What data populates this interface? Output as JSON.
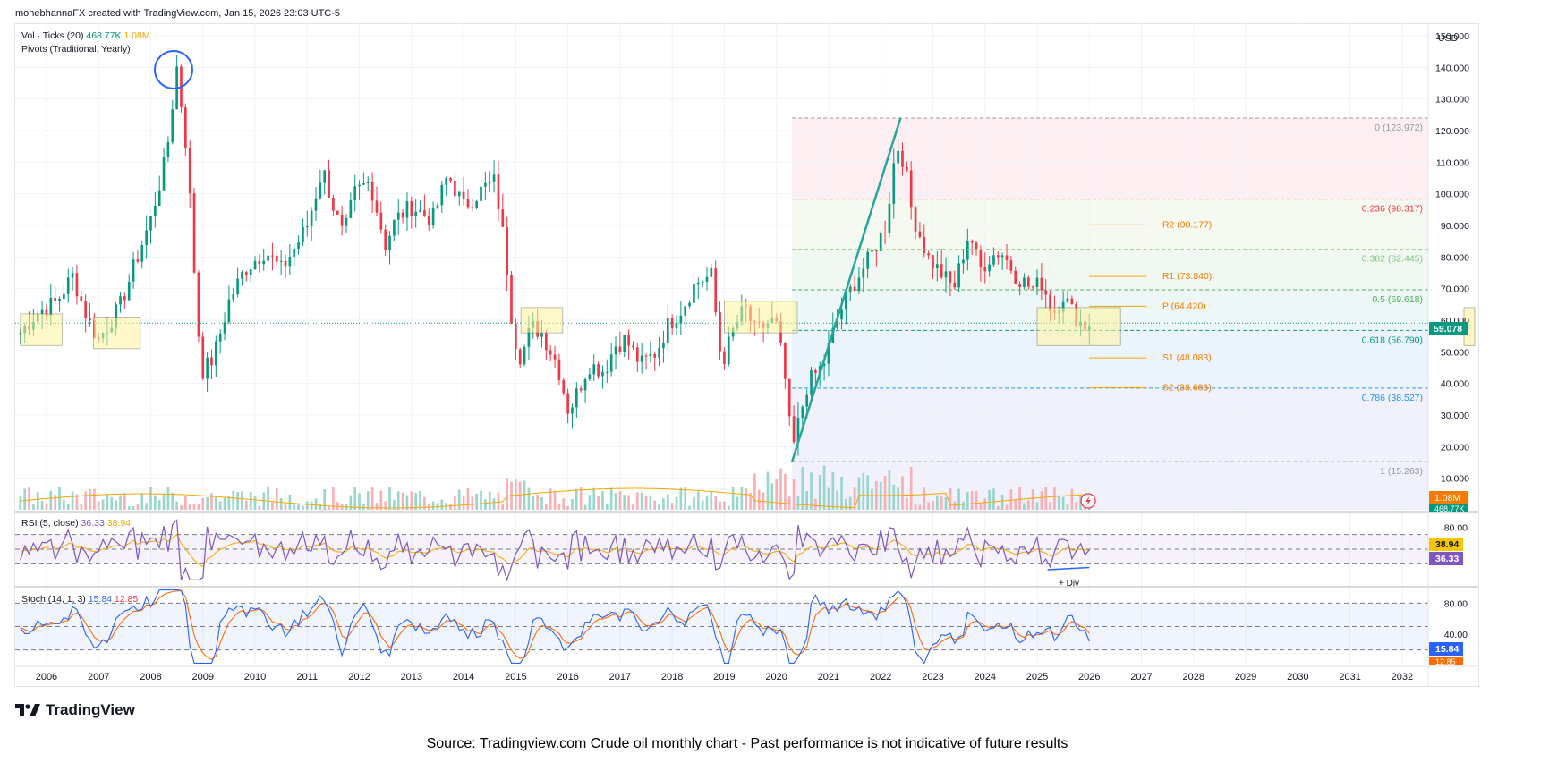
{
  "header": {
    "text": "mohebhannaFX created with TradingView.com, Jan 15, 2026 23:03 UTC-5"
  },
  "currency": "USD",
  "footer": {
    "brand": "TradingView",
    "source": "Source: Tradingview.com Crude oil monthly chart - Past performance is not indicative of future results"
  },
  "colors": {
    "up": "#089981",
    "down": "#f23645",
    "rsi": "#7e57c2",
    "rsi_ma": "#f7a600",
    "stoch_k": "#2962ff",
    "stoch_d": "#ff6d00",
    "fib_line": "#26a69a",
    "pivot": "#f7a600",
    "circle": "#2962ff"
  },
  "chart_data": [
    {
      "type": "candlestick",
      "timeframe": "monthly",
      "y_axis": {
        "ticks": [
          10,
          20,
          30,
          40,
          50,
          60,
          70,
          80,
          90,
          100,
          110,
          120,
          130,
          140,
          150
        ],
        "ylim": [
          0,
          150
        ]
      },
      "x_axis": {
        "ticks": [
          "2006",
          "2007",
          "2008",
          "2009",
          "2010",
          "2011",
          "2012",
          "2013",
          "2014",
          "2015",
          "2016",
          "2017",
          "2018",
          "2019",
          "2020",
          "2021",
          "2022",
          "2023",
          "2024",
          "2025",
          "2026",
          "2027",
          "2028",
          "2029",
          "2030",
          "2031",
          "2032"
        ],
        "range": [
          2005.4,
          2032.5
        ]
      },
      "price_path": [
        [
          2005.5,
          56
        ],
        [
          2005.8,
          62
        ],
        [
          2006.2,
          66
        ],
        [
          2006.5,
          74
        ],
        [
          2006.8,
          60
        ],
        [
          2007.0,
          54
        ],
        [
          2007.4,
          64
        ],
        [
          2007.7,
          78
        ],
        [
          2008.0,
          92
        ],
        [
          2008.3,
          112
        ],
        [
          2008.5,
          140
        ],
        [
          2008.7,
          112
        ],
        [
          2008.9,
          58
        ],
        [
          2009.0,
          44
        ],
        [
          2009.2,
          48
        ],
        [
          2009.5,
          66
        ],
        [
          2009.8,
          76
        ],
        [
          2010.2,
          82
        ],
        [
          2010.5,
          76
        ],
        [
          2010.8,
          84
        ],
        [
          2011.0,
          90
        ],
        [
          2011.3,
          108
        ],
        [
          2011.5,
          96
        ],
        [
          2011.7,
          86
        ],
        [
          2011.9,
          100
        ],
        [
          2012.2,
          104
        ],
        [
          2012.5,
          84
        ],
        [
          2012.7,
          92
        ],
        [
          2013.0,
          96
        ],
        [
          2013.4,
          92
        ],
        [
          2013.7,
          106
        ],
        [
          2014.0,
          96
        ],
        [
          2014.4,
          102
        ],
        [
          2014.6,
          104
        ],
        [
          2014.8,
          82
        ],
        [
          2014.95,
          56
        ],
        [
          2015.1,
          48
        ],
        [
          2015.3,
          58
        ],
        [
          2015.5,
          56
        ],
        [
          2015.8,
          46
        ],
        [
          2016.0,
          32
        ],
        [
          2016.1,
          34
        ],
        [
          2016.4,
          46
        ],
        [
          2016.7,
          44
        ],
        [
          2016.9,
          52
        ],
        [
          2017.1,
          54
        ],
        [
          2017.4,
          46
        ],
        [
          2017.7,
          50
        ],
        [
          2017.9,
          58
        ],
        [
          2018.2,
          64
        ],
        [
          2018.45,
          72
        ],
        [
          2018.75,
          74
        ],
        [
          2018.95,
          46
        ],
        [
          2019.2,
          58
        ],
        [
          2019.4,
          64
        ],
        [
          2019.6,
          56
        ],
        [
          2019.9,
          60
        ],
        [
          2020.0,
          58
        ],
        [
          2020.15,
          44
        ],
        [
          2020.3,
          18
        ],
        [
          2020.4,
          26
        ],
        [
          2020.6,
          40
        ],
        [
          2020.9,
          46
        ],
        [
          2021.2,
          62
        ],
        [
          2021.5,
          72
        ],
        [
          2021.8,
          80
        ],
        [
          2022.1,
          90
        ],
        [
          2022.3,
          116
        ],
        [
          2022.45,
          110
        ],
        [
          2022.6,
          94
        ],
        [
          2022.9,
          80
        ],
        [
          2023.2,
          74
        ],
        [
          2023.4,
          70
        ],
        [
          2023.7,
          88
        ],
        [
          2023.9,
          76
        ],
        [
          2024.1,
          80
        ],
        [
          2024.3,
          82
        ],
        [
          2024.6,
          74
        ],
        [
          2024.9,
          70
        ],
        [
          2025.1,
          72
        ],
        [
          2025.3,
          62
        ],
        [
          2025.5,
          68
        ],
        [
          2025.7,
          62
        ],
        [
          2025.9,
          58
        ],
        [
          2026.0,
          59
        ]
      ]
    },
    {
      "type": "volume",
      "name": "Vol · Ticks (20)",
      "values": [
        "468.77K",
        "1.08M"
      ],
      "scale_labels": [
        "1.08M",
        "468.77K"
      ]
    },
    {
      "type": "annotations",
      "pivots_name": "Pivots (Traditional, Yearly)",
      "pivots": [
        {
          "label": "R2 (90.177)",
          "value": 90.177
        },
        {
          "label": "R1 (73.840)",
          "value": 73.84
        },
        {
          "label": "P (64.420)",
          "value": 64.42
        },
        {
          "label": "S1 (48.083)",
          "value": 48.083
        },
        {
          "label": "S2 (38.663)",
          "value": 38.663
        }
      ],
      "fibonacci": [
        {
          "label": "0 (123.972)",
          "value": 123.972,
          "color": "#9598a1"
        },
        {
          "label": "0.236 (98.317)",
          "value": 98.317,
          "color": "#f23645"
        },
        {
          "label": "0.382 (82.445)",
          "value": 82.445,
          "color": "#81c784"
        },
        {
          "label": "0.5 (69.618)",
          "value": 69.618,
          "color": "#4caf50"
        },
        {
          "label": "0.618 (56.790)",
          "value": 56.79,
          "color": "#089981"
        },
        {
          "label": "0.786 (38.527)",
          "value": 38.527,
          "color": "#2196f3"
        },
        {
          "label": "1 (15.263)",
          "value": 15.263,
          "color": "#9598a1"
        }
      ],
      "current_price": "59.078",
      "divergence_label": "+ Div"
    },
    {
      "type": "line",
      "name": "RSI (5, close)",
      "values": [
        "36.33",
        "38.94"
      ],
      "ticks": [
        "80.00"
      ],
      "bands": [
        70,
        50,
        30
      ],
      "scale_labels": [
        "38.94",
        "36.33"
      ]
    },
    {
      "type": "line",
      "name": "Stoch (14, 1, 3)",
      "values": [
        "15.84",
        "12.85"
      ],
      "ticks": [
        "80.00",
        "40.00"
      ],
      "bands": [
        80,
        50,
        20
      ],
      "scale_labels": [
        "15.84",
        "12.85"
      ]
    }
  ]
}
